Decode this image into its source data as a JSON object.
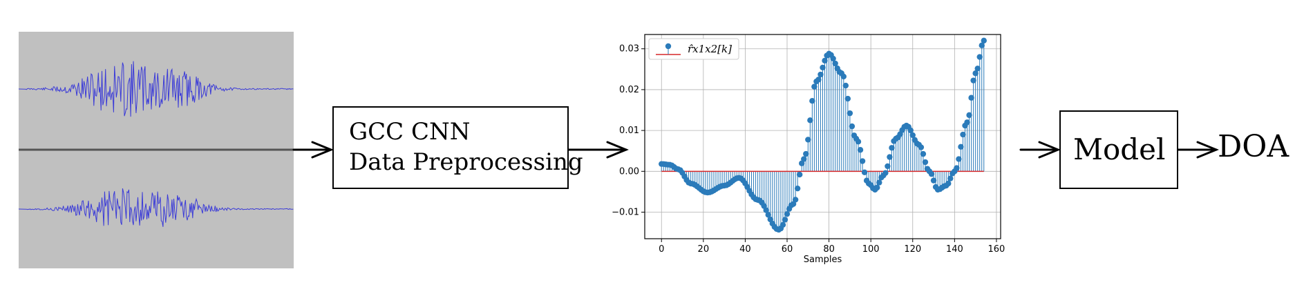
{
  "pipeline": {
    "preprocessing_box": {
      "line1": "GCC CNN",
      "line2": "Data Preprocessing"
    },
    "model_box": {
      "label": "Model"
    },
    "output_label": "DOA"
  },
  "colors": {
    "waveform": "#3a3ad8",
    "waveform_bg": "#c0c0c0",
    "stem": "#2b7bba",
    "baseline": "#d62728",
    "grid": "#b0b0b0"
  },
  "chart_data": {
    "type": "stem",
    "title": "",
    "xlabel": "Samples",
    "ylabel": "",
    "xlim": [
      -8,
      162
    ],
    "ylim": [
      -0.0165,
      0.0335
    ],
    "xticks": [
      0,
      20,
      40,
      60,
      80,
      100,
      120,
      140,
      160
    ],
    "yticks": [
      -0.01,
      0.0,
      0.01,
      0.02,
      0.03
    ],
    "ytick_labels": [
      "−0.01",
      "0.00",
      "0.01",
      "0.02",
      "0.03"
    ],
    "grid": true,
    "legend": {
      "position": "top-left",
      "entries": [
        "r̂x1x2[k]"
      ]
    },
    "series": [
      {
        "name": "r̂x1x2[k]",
        "x_start": 0,
        "x_step": 1,
        "count": 155,
        "key_points": [
          [
            0,
            0.0018
          ],
          [
            4,
            0.0016
          ],
          [
            8,
            0.0005
          ],
          [
            14,
            -0.003
          ],
          [
            22,
            -0.0052
          ],
          [
            30,
            -0.0035
          ],
          [
            37,
            -0.0016
          ],
          [
            46,
            -0.007
          ],
          [
            56,
            -0.0143
          ],
          [
            63,
            -0.008
          ],
          [
            68,
            0.003
          ],
          [
            74,
            0.022
          ],
          [
            80,
            0.0288
          ],
          [
            86,
            0.024
          ],
          [
            93,
            0.008
          ],
          [
            99,
            -0.003
          ],
          [
            102,
            -0.0045
          ],
          [
            106,
            -0.001
          ],
          [
            112,
            0.008
          ],
          [
            117,
            0.0112
          ],
          [
            123,
            0.0065
          ],
          [
            128,
            0.0
          ],
          [
            132,
            -0.0045
          ],
          [
            136,
            -0.0035
          ],
          [
            140,
            0.0
          ],
          [
            146,
            0.012
          ],
          [
            150,
            0.024
          ],
          [
            154,
            0.032
          ]
        ]
      }
    ]
  }
}
